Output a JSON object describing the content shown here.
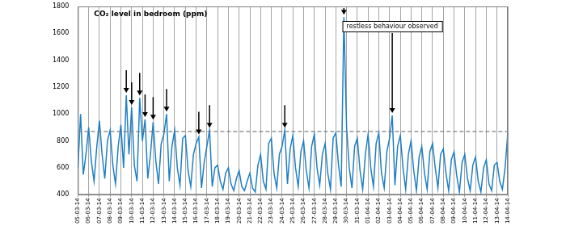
{
  "chart_data": {
    "type": "line",
    "title": "CO₂ level in bedroom (ppm)",
    "categories": [
      "05-03-14",
      null,
      null,
      null,
      "06-03-14",
      null,
      null,
      null,
      "07-03-14",
      null,
      null,
      null,
      "08-03-14",
      null,
      null,
      null,
      "09-03-14",
      null,
      null,
      null,
      "10-03-14",
      null,
      null,
      null,
      "11-03-14",
      null,
      null,
      null,
      "12-03-14",
      null,
      null,
      null,
      "13-03-14",
      null,
      null,
      null,
      "14-03-14",
      null,
      null,
      null,
      "15-03-14",
      null,
      null,
      null,
      "16-03-14",
      null,
      null,
      null,
      "17-03-14",
      null,
      null,
      null,
      "18-03-14",
      null,
      null,
      null,
      "19-03-14",
      null,
      null,
      null,
      "20-03-14",
      null,
      null,
      null,
      "21-03-14",
      null,
      null,
      null,
      "22-03-14",
      null,
      null,
      null,
      "23-03-14",
      null,
      null,
      null,
      "24-03-14",
      null,
      null,
      null,
      "25-03-14",
      null,
      null,
      null,
      "26-03-14",
      null,
      null,
      null,
      "27-03-14",
      null,
      null,
      null,
      "28-03-14",
      null,
      null,
      null,
      "29-03-14",
      null,
      null,
      null,
      "30-03-14",
      null,
      null,
      null,
      "31-03-14",
      null,
      null,
      null,
      "01-04-14",
      null,
      null,
      null,
      "02-04-14",
      null,
      null,
      null,
      "03-04-14",
      null,
      null,
      null,
      "04-04-14",
      null,
      null,
      null,
      "05-04-14",
      null,
      null,
      null,
      "06-04-14",
      null,
      null,
      null,
      "07-04-14",
      null,
      null,
      null,
      "08-04-14",
      null,
      null,
      null,
      "09-04-14",
      null,
      null,
      null,
      "10-04-14",
      null,
      null,
      null,
      "11-04-14",
      null,
      null,
      null,
      "12-04-14",
      null,
      null,
      null,
      "13-04-14",
      null,
      null,
      null,
      "14-04-14"
    ],
    "values": [
      600,
      1000,
      550,
      700,
      900,
      650,
      500,
      750,
      950,
      700,
      520,
      800,
      880,
      620,
      480,
      760,
      920,
      600,
      1140,
      700,
      1050,
      620,
      500,
      1120,
      800,
      960,
      520,
      700,
      940,
      650,
      480,
      780,
      850,
      1000,
      500,
      760,
      880,
      600,
      470,
      820,
      840,
      580,
      460,
      700,
      780,
      830,
      450,
      640,
      760,
      880,
      460,
      600,
      620,
      500,
      440,
      560,
      600,
      480,
      430,
      520,
      580,
      460,
      430,
      500,
      560,
      450,
      420,
      620,
      700,
      500,
      440,
      780,
      820,
      560,
      450,
      700,
      760,
      880,
      480,
      740,
      840,
      600,
      460,
      720,
      800,
      580,
      450,
      760,
      850,
      600,
      470,
      700,
      780,
      560,
      440,
      820,
      860,
      620,
      460,
      1720,
      900,
      600,
      450,
      760,
      820,
      580,
      440,
      700,
      850,
      600,
      460,
      780,
      860,
      560,
      450,
      720,
      820,
      990,
      470,
      760,
      840,
      600,
      440,
      700,
      800,
      580,
      430,
      680,
      760,
      560,
      440,
      720,
      780,
      600,
      450,
      700,
      740,
      560,
      430,
      660,
      720,
      540,
      420,
      640,
      700,
      520,
      430,
      620,
      680,
      500,
      420,
      600,
      660,
      480,
      430,
      620,
      640,
      500,
      440,
      600,
      860
    ],
    "color": "#1f7fc4",
    "ylim": [
      400,
      1800
    ],
    "yticks": [
      400,
      600,
      800,
      1000,
      1200,
      1400,
      1600,
      1800
    ],
    "grid": true,
    "threshold": 870,
    "arrows": [
      18,
      20,
      23,
      25,
      28,
      33,
      45,
      49,
      77,
      99
    ],
    "annotations": [
      {
        "text": "restless behaviour observed",
        "x": 117
      }
    ]
  }
}
